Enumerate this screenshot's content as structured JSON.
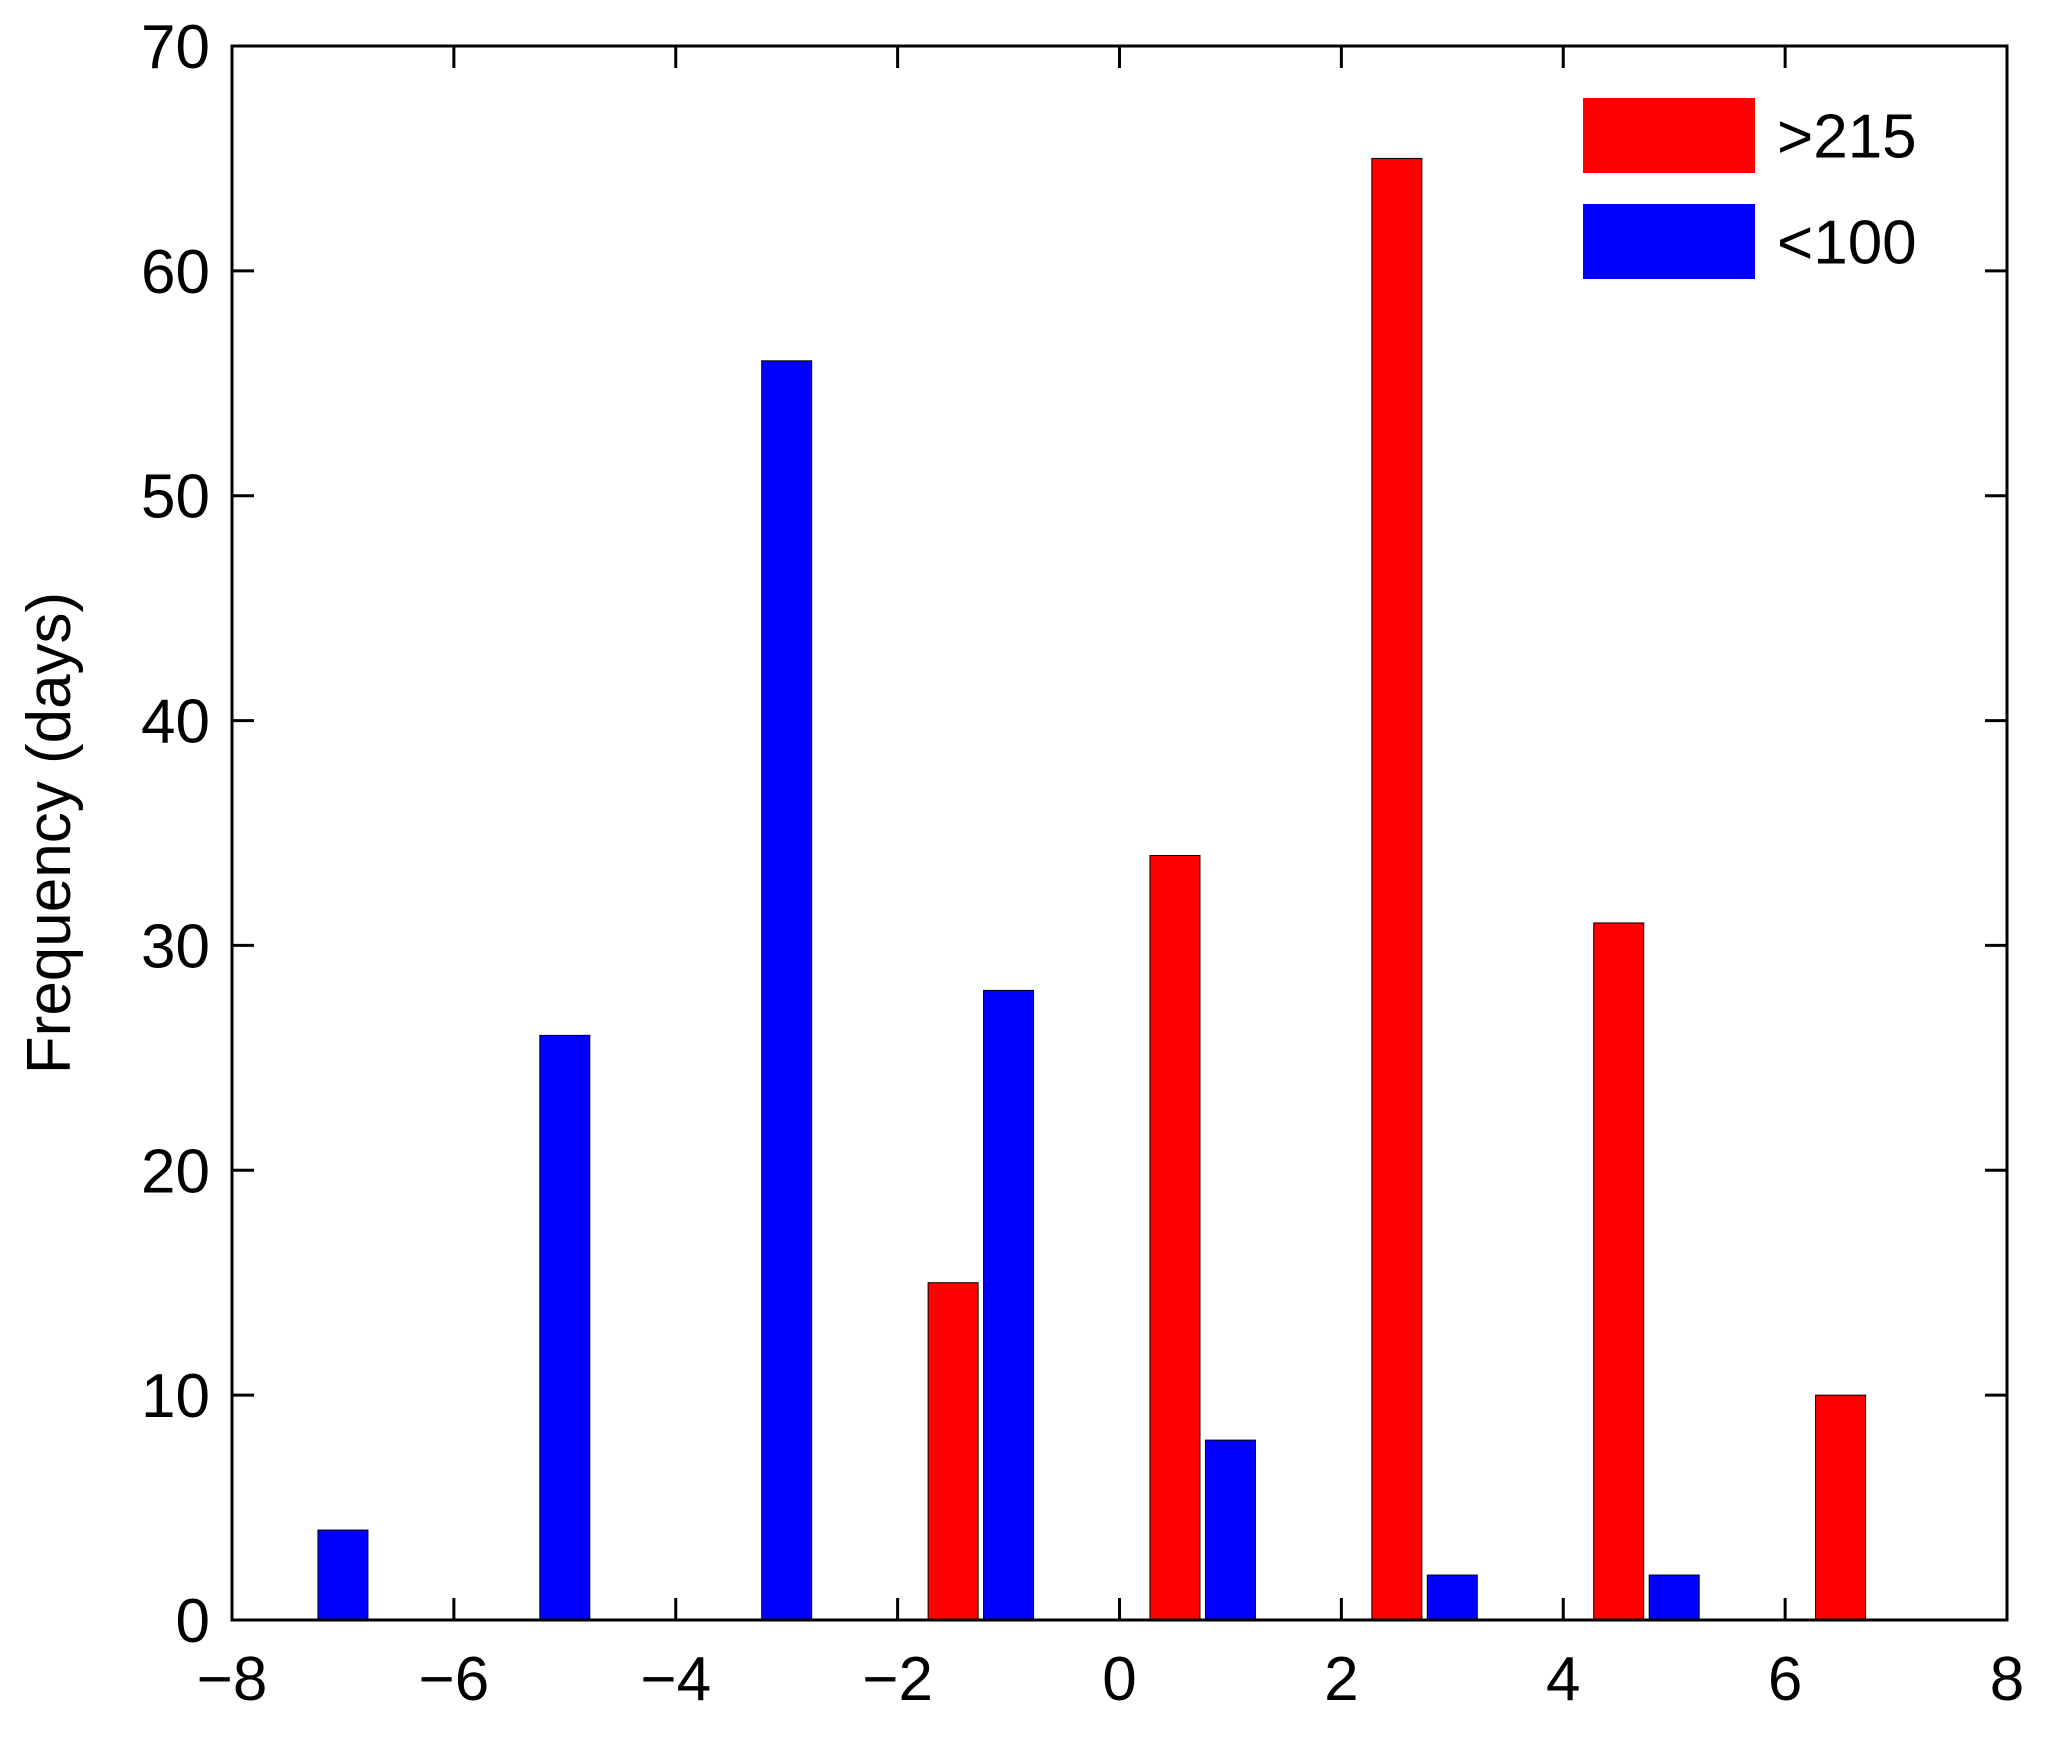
{
  "chart_data": {
    "type": "bar",
    "title": "",
    "xlabel": "",
    "ylabel": "Frequency (days)",
    "xlim": [
      -8,
      8
    ],
    "ylim": [
      0,
      70
    ],
    "xticks": [
      "−8",
      "−6",
      "−4",
      "−2",
      "0",
      "2",
      "4",
      "6",
      "8"
    ],
    "yticks": [
      "0",
      "10",
      "20",
      "30",
      "40",
      "50",
      "60",
      "70"
    ],
    "grid": false,
    "legend_position": "top-right",
    "series": [
      {
        "name": ">215",
        "color": "#ff0000",
        "points": [
          {
            "x": -1.5,
            "y": 15
          },
          {
            "x": 0.5,
            "y": 34
          },
          {
            "x": 2.5,
            "y": 65
          },
          {
            "x": 4.5,
            "y": 31
          },
          {
            "x": 6.5,
            "y": 10
          }
        ]
      },
      {
        "name": "<100",
        "color": "#0000ff",
        "points": [
          {
            "x": -7.0,
            "y": 4
          },
          {
            "x": -5.0,
            "y": 26
          },
          {
            "x": -3.0,
            "y": 56
          },
          {
            "x": -1.0,
            "y": 28
          },
          {
            "x": 1.0,
            "y": 8
          },
          {
            "x": 3.0,
            "y": 2
          },
          {
            "x": 5.0,
            "y": 2
          }
        ]
      }
    ]
  }
}
